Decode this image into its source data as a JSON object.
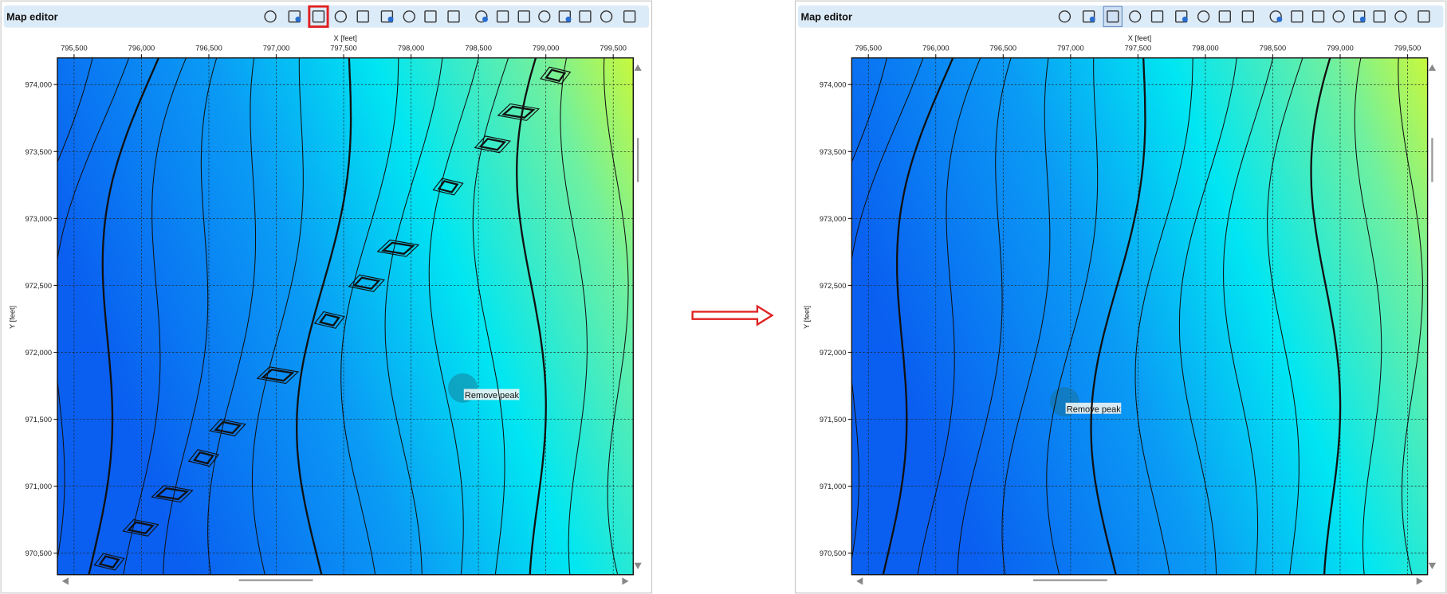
{
  "panels": [
    {
      "title": "Map editor",
      "x_axis_label": "X [feet]",
      "y_axis_label": "Y [feet]",
      "x_tick_labels": [
        "795,500",
        "796,000",
        "796,500",
        "797,000",
        "797,500",
        "798,000",
        "798,500",
        "799,000",
        "799,500"
      ],
      "y_tick_labels": [
        "974,000",
        "973,500",
        "973,000",
        "972,500",
        "972,000",
        "971,500",
        "971,000",
        "970,500"
      ],
      "tooltip": "Remove peak"
    },
    {
      "title": "Map editor",
      "x_axis_label": "X [feet]",
      "y_axis_label": "Y [feet]",
      "x_tick_labels": [
        "795,500",
        "796,000",
        "796,500",
        "797,000",
        "797,500",
        "798,000",
        "798,500",
        "799,000",
        "799,500"
      ],
      "y_tick_labels": [
        "974,000",
        "973,500",
        "973,000",
        "972,500",
        "972,000",
        "971,500",
        "971,000",
        "970,500"
      ],
      "tooltip": "Remove peak"
    }
  ]
}
